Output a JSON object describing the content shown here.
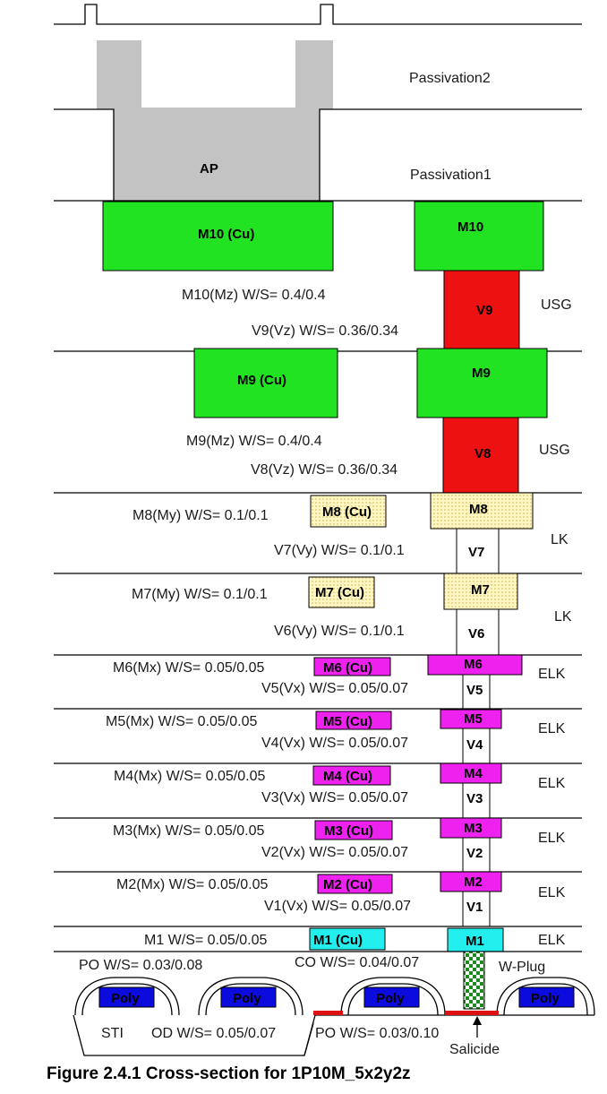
{
  "colors": {
    "passivation": "#c3c3c3",
    "copper_thick": "#22e322",
    "via_thick": "#ee1111",
    "copper_my": "#fff099",
    "copper_mx": "#ee22ee",
    "m1": "#22eeee",
    "poly": "#0b0bdd",
    "salicide": "#dd1111",
    "wplug": "#1d8a1d"
  },
  "layers": {
    "passivation2": "Passivation2",
    "passivation1": "Passivation1",
    "ap": "AP"
  },
  "blocks": {
    "m10_cu": "M10 (Cu)",
    "m10": "M10",
    "v9": "V9",
    "m9_cu": "M9 (Cu)",
    "m9": "M9",
    "v8": "V8",
    "m8_cu": "M8 (Cu)",
    "m8": "M8",
    "v7": "V7",
    "m7_cu": "M7 (Cu)",
    "m7": "M7",
    "v6": "V6",
    "m6_cu": "M6 (Cu)",
    "m6": "M6",
    "v5": "V5",
    "m5_cu": "M5 (Cu)",
    "m5": "M5",
    "v4": "V4",
    "m4_cu": "M4 (Cu)",
    "m4": "M4",
    "v3": "V3",
    "m3_cu": "M3 (Cu)",
    "m3": "M3",
    "v2": "V2",
    "m2_cu": "M2 (Cu)",
    "m2": "M2",
    "v1": "V1",
    "m1_cu": "M1 (Cu)",
    "m1": "M1",
    "poly": "Poly"
  },
  "rules": {
    "m10": "M10(Mz) W/S= 0.4/0.4",
    "v9": "V9(Vz) W/S= 0.36/0.34",
    "m9": "M9(Mz) W/S= 0.4/0.4",
    "v8": "V8(Vz) W/S= 0.36/0.34",
    "m8": "M8(My) W/S= 0.1/0.1",
    "v7": "V7(Vy) W/S= 0.1/0.1",
    "m7": "M7(My) W/S= 0.1/0.1",
    "v6": "V6(Vy) W/S= 0.1/0.1",
    "m6": "M6(Mx) W/S= 0.05/0.05",
    "v5": "V5(Vx) W/S= 0.05/0.07",
    "m5": "M5(Mx) W/S= 0.05/0.05",
    "v4": "V4(Vx) W/S= 0.05/0.07",
    "m4": "M4(Mx) W/S= 0.05/0.05",
    "v3": "V3(Vx) W/S= 0.05/0.07",
    "m3": "M3(Mx) W/S= 0.05/0.05",
    "v2": "V2(Vx) W/S= 0.05/0.07",
    "m2": "M2(Mx) W/S= 0.05/0.05",
    "v1": "V1(Vx) W/S= 0.05/0.07",
    "m1": "M1 W/S= 0.05/0.05",
    "po_top": "PO W/S= 0.03/0.08",
    "co": "CO W/S= 0.04/0.07",
    "od": "OD W/S= 0.05/0.07",
    "po_bottom": "PO W/S= 0.03/0.10"
  },
  "dielectrics": {
    "usg": "USG",
    "lk": "LK",
    "elk": "ELK"
  },
  "fe": {
    "sti": "STI",
    "wplug": "W-Plug",
    "salicide": "Salicide"
  },
  "caption": "Figure 2.4.1  Cross-section for 1P10M_5x2y2z"
}
